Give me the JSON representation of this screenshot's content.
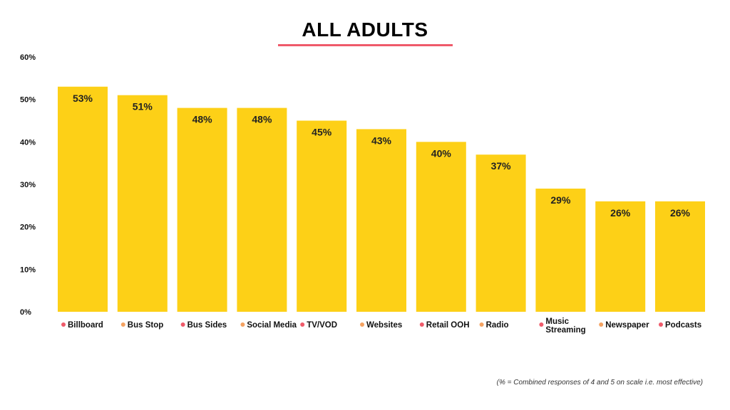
{
  "title": "ALL ADULTS",
  "footnote": "(% = Combined responses of 4 and 5 on scale i.e. most effective)",
  "chart_data": {
    "type": "bar",
    "title": "ALL ADULTS",
    "xlabel": "",
    "ylabel": "",
    "ylim": [
      0,
      60
    ],
    "yticks": [
      "0%",
      "10%",
      "20%",
      "30%",
      "40%",
      "50%",
      "60%"
    ],
    "grid": false,
    "bar_color": "#FDD017",
    "categories": [
      {
        "label": [
          "Billboard"
        ],
        "value": 53,
        "data_label": "53%",
        "dot_color": "#ef5a6a"
      },
      {
        "label": [
          "Bus Stop"
        ],
        "value": 51,
        "data_label": "51%",
        "dot_color": "#f4a261"
      },
      {
        "label": [
          "Bus Sides"
        ],
        "value": 48,
        "data_label": "48%",
        "dot_color": "#ef5a6a"
      },
      {
        "label": [
          "Social Media"
        ],
        "value": 48,
        "data_label": "48%",
        "dot_color": "#f4a261"
      },
      {
        "label": [
          "TV/VOD"
        ],
        "value": 45,
        "data_label": "45%",
        "dot_color": "#ef5a6a"
      },
      {
        "label": [
          "Websites"
        ],
        "value": 43,
        "data_label": "43%",
        "dot_color": "#f4a261"
      },
      {
        "label": [
          "Retail OOH"
        ],
        "value": 40,
        "data_label": "40%",
        "dot_color": "#ef5a6a"
      },
      {
        "label": [
          "Radio"
        ],
        "value": 37,
        "data_label": "37%",
        "dot_color": "#f4a261"
      },
      {
        "label": [
          "Music",
          "Streaming"
        ],
        "value": 29,
        "data_label": "29%",
        "dot_color": "#ef5a6a"
      },
      {
        "label": [
          "Newspaper"
        ],
        "value": 26,
        "data_label": "26%",
        "dot_color": "#f4a261"
      },
      {
        "label": [
          "Podcasts"
        ],
        "value": 26,
        "data_label": "26%",
        "dot_color": "#ef5a6a"
      }
    ]
  }
}
